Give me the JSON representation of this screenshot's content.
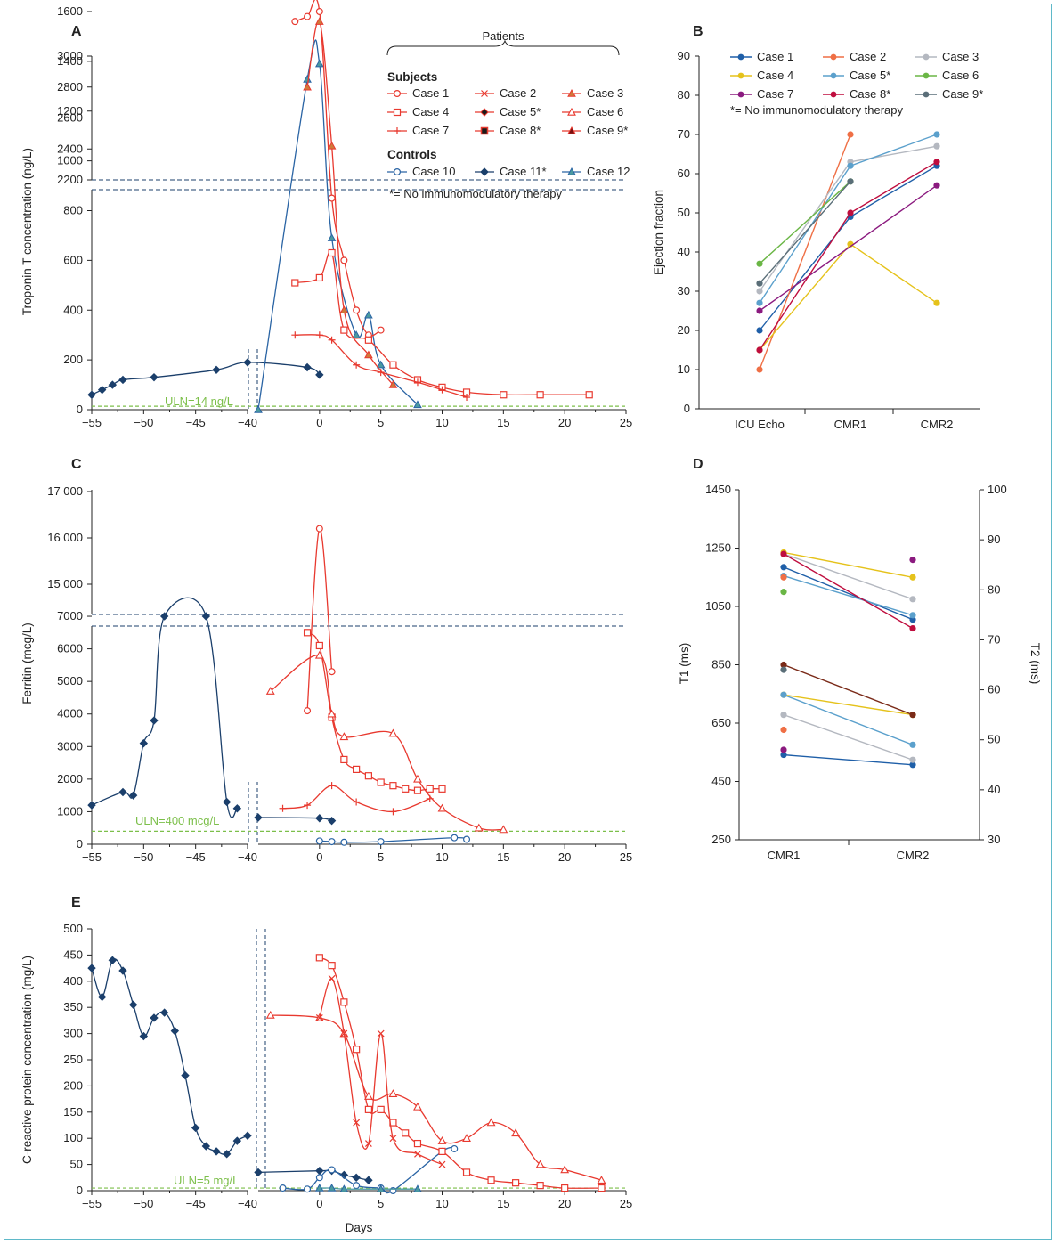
{
  "colors": {
    "red": "#e8392f",
    "navy": "#1b3f6b",
    "blue": "#2a64a4",
    "uln": "#7cbf4a",
    "teal": "#4a9aa0"
  },
  "chart_data": [
    {
      "panel": "A",
      "type": "line",
      "ylabel": "Troponin T concentration (ng/L)",
      "xlabel": "",
      "x_ticks": [
        -55,
        -50,
        -45,
        -40,
        0,
        5,
        10,
        15,
        20,
        25
      ],
      "x_tick_labels": [
        "−55",
        "−50",
        "−45",
        "−40",
        "0",
        "5",
        "10",
        "15",
        "20",
        "25"
      ],
      "y_ticks_lower": [
        0,
        200,
        400,
        600,
        800,
        1000,
        1200,
        1400,
        1600
      ],
      "y_ticks_upper": [
        2200,
        2400,
        2600,
        2800,
        3000
      ],
      "uln_label": "ULN=14 ng/L",
      "uln_value": 14,
      "legend": {
        "header": "Patients",
        "subjects_title": "Subjects",
        "controls_title": "Controls",
        "subjects": [
          {
            "name": "Case 1",
            "marker": "circle-open",
            "color": "#e8392f"
          },
          {
            "name": "Case 2",
            "marker": "x",
            "color": "#e8392f"
          },
          {
            "name": "Case 3",
            "marker": "triangle-filled",
            "color": "#e8392f"
          },
          {
            "name": "Case 4",
            "marker": "square-open",
            "color": "#e8392f"
          },
          {
            "name": "Case 5*",
            "marker": "diamond-filled",
            "color": "#e8392f"
          },
          {
            "name": "Case 6",
            "marker": "triangle-open",
            "color": "#e8392f"
          },
          {
            "name": "Case 7",
            "marker": "plus",
            "color": "#e8392f"
          },
          {
            "name": "Case 8*",
            "marker": "square-filled",
            "color": "#e8392f"
          },
          {
            "name": "Case 9*",
            "marker": "triangle-dark",
            "color": "#e8392f"
          }
        ],
        "controls": [
          {
            "name": "Case 10",
            "marker": "circle-open",
            "color": "#2a64a4"
          },
          {
            "name": "Case 11*",
            "marker": "diamond-filled",
            "color": "#1b3f6b"
          },
          {
            "name": "Case 12",
            "marker": "triangle-teal",
            "color": "#2a64a4"
          }
        ],
        "note": "*= No immunomodulatory therapy"
      },
      "series": [
        {
          "name": "Case 11*",
          "color": "#1b3f6b",
          "marker": "diamond-filled",
          "x": [
            -55,
            -54,
            -53,
            -52,
            -49,
            -43,
            -40,
            -1,
            0
          ],
          "y": [
            60,
            80,
            100,
            120,
            130,
            160,
            190,
            170,
            140
          ]
        },
        {
          "name": "Case 12",
          "color": "#2a64a4",
          "marker": "triangle-teal",
          "x": [
            -5,
            -1,
            0,
            1,
            3,
            4,
            5,
            8
          ],
          "y": [
            0,
            2850,
            2950,
            690,
            300,
            380,
            180,
            20
          ]
        },
        {
          "name": "Case 1",
          "color": "#e8392f",
          "marker": "circle-open",
          "x": [
            -2,
            -1,
            0,
            1,
            2,
            3,
            4,
            5
          ],
          "y": [
            1560,
            1580,
            1600,
            850,
            600,
            400,
            300,
            320
          ]
        },
        {
          "name": "Case 4",
          "color": "#e8392f",
          "marker": "square-open",
          "x": [
            -2,
            0,
            1,
            2,
            4,
            6,
            8,
            10,
            12,
            15,
            18,
            22
          ],
          "y": [
            510,
            530,
            630,
            320,
            280,
            180,
            120,
            90,
            70,
            60,
            60,
            60
          ]
        },
        {
          "name": "Case 3",
          "color": "#e8392f",
          "marker": "triangle-filled",
          "x": [
            -1,
            0,
            1,
            2,
            4,
            6
          ],
          "y": [
            2800,
            1560,
            1060,
            400,
            220,
            100
          ]
        },
        {
          "name": "Case 7",
          "color": "#e8392f",
          "marker": "plus",
          "x": [
            -2,
            0,
            1,
            3,
            5,
            8,
            10,
            12
          ],
          "y": [
            300,
            300,
            280,
            180,
            150,
            110,
            80,
            50
          ]
        }
      ]
    },
    {
      "panel": "B",
      "type": "line",
      "ylabel": "Ejection fraction",
      "categories": [
        "ICU Echo",
        "CMR1",
        "CMR2"
      ],
      "y_ticks": [
        0,
        10,
        20,
        30,
        40,
        50,
        60,
        70,
        80,
        90
      ],
      "ylim": [
        0,
        90
      ],
      "note": "*= No immunomodulatory therapy",
      "series": [
        {
          "name": "Case 1",
          "color": "#1f5fa8",
          "values": [
            20,
            49,
            62
          ]
        },
        {
          "name": "Case 2",
          "color": "#ef6f45",
          "values": [
            10,
            70,
            null
          ]
        },
        {
          "name": "Case 3",
          "color": "#b4b8c0",
          "values": [
            30,
            63,
            67
          ]
        },
        {
          "name": "Case 4",
          "color": "#e5c21b",
          "values": [
            15,
            42,
            27
          ]
        },
        {
          "name": "Case 5*",
          "color": "#5ba0cc",
          "values": [
            27,
            62,
            70
          ]
        },
        {
          "name": "Case 6",
          "color": "#6ab645",
          "values": [
            37,
            58,
            null
          ]
        },
        {
          "name": "Case 7",
          "color": "#8b1a7f",
          "values": [
            25,
            null,
            57
          ]
        },
        {
          "name": "Case 8*",
          "color": "#bf0d3e",
          "values": [
            15,
            50,
            63
          ]
        },
        {
          "name": "Case 9*",
          "color": "#5a6e78",
          "values": [
            32,
            58,
            null
          ]
        }
      ]
    },
    {
      "panel": "C",
      "type": "line",
      "ylabel": "Ferritin (mcg/L)",
      "x_ticks": [
        -55,
        -50,
        -45,
        -40,
        0,
        5,
        10,
        15,
        20,
        25
      ],
      "x_tick_labels": [
        "−55",
        "−50",
        "−45",
        "−40",
        "0",
        "5",
        "10",
        "15",
        "20",
        "25"
      ],
      "y_ticks_lower": [
        0,
        1000,
        2000,
        3000,
        4000,
        5000,
        6000,
        7000
      ],
      "y_ticks_upper": [
        15000,
        16000,
        17000
      ],
      "uln_label": "ULN=400 mcg/L",
      "uln_value": 400,
      "series": [
        {
          "name": "Case 11*",
          "color": "#1b3f6b",
          "marker": "diamond-filled",
          "x": [
            -55,
            -52,
            -51,
            -50,
            -49,
            -48,
            -44,
            -42,
            -41
          ],
          "y": [
            1200,
            1600,
            1500,
            3100,
            3800,
            7000,
            7000,
            1300,
            1100
          ]
        },
        {
          "name": "Case 11* (day 0)",
          "color": "#1b3f6b",
          "marker": "diamond-filled",
          "x": [
            -5,
            0,
            1
          ],
          "y": [
            820,
            800,
            720
          ]
        },
        {
          "name": "Case 10",
          "color": "#2a64a4",
          "marker": "circle-open",
          "x": [
            0,
            1,
            2,
            5,
            11,
            12
          ],
          "y": [
            100,
            80,
            60,
            80,
            200,
            150
          ]
        },
        {
          "name": "Case 1",
          "color": "#e8392f",
          "marker": "circle-open",
          "x": [
            -1,
            0,
            1
          ],
          "y": [
            4100,
            16200,
            5300
          ]
        },
        {
          "name": "Case 4",
          "color": "#e8392f",
          "marker": "square-open",
          "x": [
            -1,
            0,
            1,
            2,
            3,
            4,
            5,
            6,
            7,
            8,
            9,
            10
          ],
          "y": [
            6500,
            6100,
            3900,
            2600,
            2300,
            2100,
            1900,
            1800,
            1700,
            1650,
            1700,
            1700
          ]
        },
        {
          "name": "Case 6",
          "color": "#e8392f",
          "marker": "triangle-open",
          "x": [
            -4,
            0,
            1,
            2,
            6,
            8,
            10,
            13,
            15
          ],
          "y": [
            4700,
            5800,
            4000,
            3300,
            3400,
            2000,
            1100,
            500,
            450
          ]
        },
        {
          "name": "Case 7",
          "color": "#e8392f",
          "marker": "plus",
          "x": [
            -3,
            -1,
            1,
            3,
            6,
            9
          ],
          "y": [
            1100,
            1200,
            1800,
            1300,
            1000,
            1400
          ]
        }
      ]
    },
    {
      "panel": "D",
      "type": "line",
      "ylabel": "T1 (ms)",
      "y2label": "T2 (ms)",
      "categories": [
        "CMR1",
        "CMR2"
      ],
      "y_ticks": [
        250,
        450,
        650,
        850,
        1050,
        1250,
        1450
      ],
      "y2_ticks": [
        30,
        40,
        50,
        60,
        70,
        80,
        90,
        100
      ],
      "series_t1": [
        {
          "name": "Case 1",
          "color": "#1f5fa8",
          "values": [
            1185,
            1005
          ]
        },
        {
          "name": "Case 3",
          "color": "#b4b8c0",
          "values": [
            1230,
            1075
          ]
        },
        {
          "name": "Case 4",
          "color": "#e5c21b",
          "values": [
            1235,
            1150
          ]
        },
        {
          "name": "Case 5*",
          "color": "#5ba0cc",
          "values": [
            1155,
            1020
          ]
        },
        {
          "name": "Case 8*",
          "color": "#bf0d3e",
          "values": [
            1230,
            975
          ]
        },
        {
          "name": "Case 2",
          "color": "#ef6f45",
          "values": [
            1150,
            null
          ]
        },
        {
          "name": "Case 6",
          "color": "#6ab645",
          "values": [
            1100,
            null
          ]
        },
        {
          "name": "Case 7",
          "color": "#8b1a7f",
          "values": [
            null,
            1210
          ]
        }
      ],
      "series_t2": [
        {
          "name": "Case 1",
          "color": "#1f5fa8",
          "values": [
            47,
            45
          ]
        },
        {
          "name": "Case 3",
          "color": "#b4b8c0",
          "values": [
            55,
            46
          ]
        },
        {
          "name": "Case 4",
          "color": "#e5c21b",
          "values": [
            59,
            55
          ]
        },
        {
          "name": "Case 5*",
          "color": "#5ba0cc",
          "values": [
            59,
            49
          ]
        },
        {
          "name": "Case 8*",
          "color": "#7a2a18",
          "values": [
            65,
            55
          ]
        },
        {
          "name": "Case 2",
          "color": "#ef6f45",
          "values": [
            52,
            null
          ]
        },
        {
          "name": "Case 9*",
          "color": "#5a6e78",
          "values": [
            64,
            null
          ]
        },
        {
          "name": "Case 7",
          "color": "#8b1a7f",
          "values": [
            48,
            null
          ]
        }
      ]
    },
    {
      "panel": "E",
      "type": "line",
      "ylabel": "C-reactive protein concentration (mg/L)",
      "xlabel": "Days",
      "x_ticks": [
        -55,
        -50,
        -45,
        -40,
        0,
        5,
        10,
        15,
        20,
        25
      ],
      "x_tick_labels": [
        "−55",
        "−50",
        "−45",
        "−40",
        "0",
        "5",
        "10",
        "15",
        "20",
        "25"
      ],
      "y_ticks": [
        0,
        50,
        100,
        150,
        200,
        250,
        300,
        350,
        400,
        450,
        500
      ],
      "uln_label": "ULN=5 mg/L",
      "uln_value": 5,
      "series": [
        {
          "name": "Case 11*",
          "color": "#1b3f6b",
          "marker": "diamond-filled",
          "x": [
            -55,
            -54,
            -53,
            -52,
            -51,
            -50,
            -49,
            -48,
            -47,
            -46,
            -45,
            -44,
            -43,
            -42,
            -41,
            -40
          ],
          "y": [
            425,
            370,
            440,
            420,
            355,
            295,
            330,
            340,
            305,
            220,
            120,
            85,
            75,
            70,
            95,
            105
          ]
        },
        {
          "name": "Case 11* (day 0)",
          "color": "#1b3f6b",
          "marker": "diamond-filled",
          "x": [
            -5,
            0,
            1,
            2,
            3,
            4
          ],
          "y": [
            35,
            38,
            38,
            30,
            25,
            20
          ]
        },
        {
          "name": "Case 10",
          "color": "#2a64a4",
          "marker": "circle-open",
          "x": [
            -3,
            -1,
            0,
            1,
            3,
            5,
            6,
            10,
            11
          ],
          "y": [
            5,
            3,
            25,
            40,
            10,
            5,
            0,
            75,
            80
          ]
        },
        {
          "name": "Case 12",
          "color": "#4a9aa0",
          "marker": "triangle-teal",
          "x": [
            0,
            1,
            2,
            5,
            8
          ],
          "y": [
            5,
            5,
            3,
            3,
            3
          ]
        },
        {
          "name": "Case 4",
          "color": "#e8392f",
          "marker": "square-open",
          "x": [
            0,
            1,
            2,
            3,
            4,
            5,
            6,
            7,
            8,
            10,
            12,
            14,
            16,
            18,
            20,
            23
          ],
          "y": [
            445,
            430,
            360,
            270,
            155,
            155,
            130,
            110,
            90,
            75,
            35,
            20,
            15,
            10,
            5,
            5
          ]
        },
        {
          "name": "Case 6",
          "color": "#e8392f",
          "marker": "triangle-open",
          "x": [
            -4,
            0,
            2,
            4,
            6,
            8,
            10,
            12,
            14,
            16,
            18,
            20,
            23
          ],
          "y": [
            335,
            330,
            300,
            180,
            185,
            160,
            95,
            100,
            130,
            110,
            50,
            40,
            20
          ]
        },
        {
          "name": "Case 2",
          "color": "#e8392f",
          "marker": "x",
          "x": [
            0,
            1,
            2,
            3,
            4,
            5,
            6,
            8,
            10
          ],
          "y": [
            330,
            405,
            300,
            130,
            90,
            300,
            100,
            70,
            50
          ]
        }
      ]
    }
  ],
  "panel_letters": {
    "a": "A",
    "b": "B",
    "c": "C",
    "d": "D",
    "e": "E"
  }
}
